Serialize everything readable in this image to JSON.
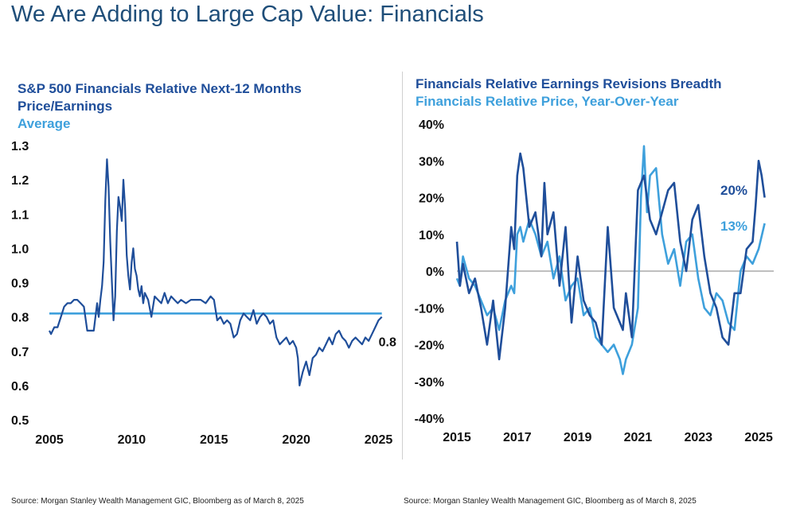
{
  "page": {
    "title": "We Are Adding to Large Cap Value: Financials",
    "sources": [
      "Source: Morgan Stanley Wealth Management GIC, Bloomberg as of March 8, 2025",
      "Source: Morgan Stanley Wealth Management GIC, Bloomberg as of March 8, 2025"
    ]
  },
  "colors": {
    "dark": "#1f4e9a",
    "light": "#3ea0dc",
    "text": "#111111",
    "zero": "#999999"
  },
  "chart_data": [
    {
      "type": "line",
      "title_lines": [
        "S&P 500 Financials Relative Next-12 Months",
        "Price/Earnings"
      ],
      "legend": [
        "Average"
      ],
      "xlim": [
        2005,
        2025.7
      ],
      "ylim": [
        0.5,
        1.3
      ],
      "x_ticks": [
        "2005",
        "2010",
        "2015",
        "2020",
        "2025"
      ],
      "x_tick_values": [
        2005,
        2010,
        2015,
        2020,
        2025
      ],
      "y_ticks": [
        "1.3",
        "1.2",
        "1.1",
        "1.0",
        "0.9",
        "0.8",
        "0.7",
        "0.6",
        "0.5"
      ],
      "y_tick_values": [
        1.3,
        1.2,
        1.1,
        1.0,
        0.9,
        0.8,
        0.7,
        0.6,
        0.5
      ],
      "end_label": "0.8",
      "series": [
        {
          "role": "main",
          "x": [
            2005.0,
            2005.1,
            2005.3,
            2005.5,
            2005.7,
            2005.9,
            2006.1,
            2006.3,
            2006.5,
            2006.7,
            2006.9,
            2007.1,
            2007.3,
            2007.5,
            2007.7,
            2007.9,
            2008.0,
            2008.1,
            2008.2,
            2008.3,
            2008.4,
            2008.5,
            2008.6,
            2008.7,
            2008.8,
            2008.9,
            2009.0,
            2009.1,
            2009.2,
            2009.3,
            2009.4,
            2009.5,
            2009.6,
            2009.7,
            2009.8,
            2009.9,
            2010.0,
            2010.1,
            2010.2,
            2010.3,
            2010.4,
            2010.5,
            2010.6,
            2010.7,
            2010.8,
            2011.0,
            2011.2,
            2011.4,
            2011.6,
            2011.8,
            2012.0,
            2012.2,
            2012.4,
            2012.6,
            2012.8,
            2013.0,
            2013.3,
            2013.6,
            2013.9,
            2014.2,
            2014.5,
            2014.8,
            2015.0,
            2015.2,
            2015.4,
            2015.6,
            2015.8,
            2016.0,
            2016.2,
            2016.4,
            2016.6,
            2016.8,
            2017.0,
            2017.2,
            2017.4,
            2017.6,
            2017.8,
            2018.0,
            2018.2,
            2018.4,
            2018.6,
            2018.8,
            2019.0,
            2019.2,
            2019.4,
            2019.6,
            2019.8,
            2020.0,
            2020.1,
            2020.2,
            2020.4,
            2020.6,
            2020.8,
            2021.0,
            2021.2,
            2021.4,
            2021.6,
            2021.8,
            2022.0,
            2022.2,
            2022.4,
            2022.6,
            2022.8,
            2023.0,
            2023.2,
            2023.4,
            2023.6,
            2023.8,
            2024.0,
            2024.2,
            2024.4,
            2024.6,
            2024.8,
            2025.0,
            2025.2
          ],
          "y": [
            0.76,
            0.75,
            0.77,
            0.77,
            0.8,
            0.83,
            0.84,
            0.84,
            0.85,
            0.85,
            0.84,
            0.83,
            0.76,
            0.76,
            0.76,
            0.84,
            0.8,
            0.85,
            0.89,
            0.96,
            1.14,
            1.26,
            1.18,
            1.02,
            0.9,
            0.79,
            0.86,
            1.05,
            1.15,
            1.12,
            1.08,
            1.2,
            1.12,
            0.98,
            0.92,
            0.88,
            0.96,
            1.0,
            0.94,
            0.92,
            0.88,
            0.86,
            0.89,
            0.84,
            0.87,
            0.85,
            0.8,
            0.86,
            0.85,
            0.84,
            0.87,
            0.84,
            0.86,
            0.85,
            0.84,
            0.85,
            0.84,
            0.85,
            0.85,
            0.85,
            0.84,
            0.86,
            0.85,
            0.79,
            0.8,
            0.78,
            0.79,
            0.78,
            0.74,
            0.75,
            0.79,
            0.81,
            0.8,
            0.79,
            0.82,
            0.78,
            0.8,
            0.81,
            0.8,
            0.78,
            0.79,
            0.74,
            0.72,
            0.73,
            0.74,
            0.72,
            0.73,
            0.71,
            0.68,
            0.6,
            0.64,
            0.67,
            0.63,
            0.68,
            0.69,
            0.71,
            0.7,
            0.72,
            0.74,
            0.72,
            0.75,
            0.76,
            0.74,
            0.73,
            0.71,
            0.73,
            0.74,
            0.73,
            0.72,
            0.74,
            0.73,
            0.75,
            0.77,
            0.79,
            0.8
          ]
        },
        {
          "role": "average",
          "name": "Average",
          "x": [
            2005.0,
            2025.2
          ],
          "y": [
            0.81,
            0.81
          ]
        }
      ]
    },
    {
      "type": "line",
      "title_lines": [
        "Financials Relative Earnings Revisions Breadth",
        "Financials Relative Price, Year-Over-Year"
      ],
      "xlim": [
        2015,
        2025.5
      ],
      "ylim": [
        -40,
        40
      ],
      "x_ticks": [
        "2015",
        "2017",
        "2019",
        "2021",
        "2023",
        "2025"
      ],
      "x_tick_values": [
        2015,
        2017,
        2019,
        2021,
        2023,
        2025
      ],
      "y_ticks": [
        "40%",
        "30%",
        "20%",
        "10%",
        "0%",
        "-10%",
        "-20%",
        "-30%",
        "-40%"
      ],
      "y_tick_values": [
        40,
        30,
        20,
        10,
        0,
        -10,
        -20,
        -30,
        -40
      ],
      "series": [
        {
          "name": "Financials Relative Earnings Revisions Breadth",
          "end_label": "20%",
          "x": [
            2015.0,
            2015.1,
            2015.2,
            2015.4,
            2015.6,
            2015.8,
            2016.0,
            2016.2,
            2016.4,
            2016.6,
            2016.8,
            2016.9,
            2017.0,
            2017.1,
            2017.2,
            2017.4,
            2017.6,
            2017.8,
            2017.9,
            2018.0,
            2018.2,
            2018.4,
            2018.6,
            2018.8,
            2019.0,
            2019.2,
            2019.4,
            2019.6,
            2019.8,
            2020.0,
            2020.2,
            2020.4,
            2020.5,
            2020.6,
            2020.8,
            2021.0,
            2021.2,
            2021.4,
            2021.6,
            2021.8,
            2022.0,
            2022.2,
            2022.4,
            2022.6,
            2022.8,
            2023.0,
            2023.2,
            2023.4,
            2023.6,
            2023.8,
            2024.0,
            2024.2,
            2024.4,
            2024.6,
            2024.8,
            2024.9,
            2025.0,
            2025.1,
            2025.2
          ],
          "y": [
            8,
            -4,
            2,
            -6,
            -2,
            -10,
            -20,
            -8,
            -24,
            -10,
            12,
            6,
            26,
            32,
            28,
            12,
            16,
            4,
            24,
            10,
            16,
            -4,
            12,
            -14,
            4,
            -8,
            -12,
            -14,
            -20,
            12,
            -10,
            -14,
            -16,
            -6,
            -18,
            22,
            26,
            14,
            10,
            16,
            22,
            24,
            8,
            0,
            14,
            18,
            4,
            -6,
            -10,
            -18,
            -20,
            -6,
            -6,
            6,
            8,
            18,
            30,
            26,
            20
          ]
        },
        {
          "name": "Financials Relative Price, Year-Over-Year",
          "end_label": "13%",
          "x": [
            2015.0,
            2015.1,
            2015.2,
            2015.4,
            2015.6,
            2015.8,
            2016.0,
            2016.2,
            2016.4,
            2016.6,
            2016.8,
            2016.9,
            2017.0,
            2017.1,
            2017.2,
            2017.4,
            2017.6,
            2017.8,
            2018.0,
            2018.2,
            2018.4,
            2018.6,
            2018.8,
            2019.0,
            2019.2,
            2019.4,
            2019.6,
            2019.8,
            2020.0,
            2020.2,
            2020.4,
            2020.5,
            2020.6,
            2020.8,
            2021.0,
            2021.1,
            2021.2,
            2021.3,
            2021.4,
            2021.6,
            2021.8,
            2022.0,
            2022.2,
            2022.4,
            2022.6,
            2022.8,
            2023.0,
            2023.2,
            2023.4,
            2023.6,
            2023.8,
            2024.0,
            2024.2,
            2024.4,
            2024.6,
            2024.8,
            2025.0,
            2025.2
          ],
          "y": [
            -2,
            -4,
            4,
            -2,
            -4,
            -8,
            -12,
            -10,
            -16,
            -8,
            -4,
            -6,
            10,
            12,
            8,
            14,
            10,
            4,
            8,
            -2,
            4,
            -8,
            -4,
            -2,
            -12,
            -10,
            -18,
            -20,
            -22,
            -20,
            -24,
            -28,
            -24,
            -20,
            -10,
            20,
            34,
            16,
            26,
            28,
            10,
            2,
            6,
            -4,
            8,
            10,
            -2,
            -10,
            -12,
            -6,
            -8,
            -14,
            -16,
            0,
            4,
            2,
            6,
            13
          ]
        }
      ],
      "zero_line": 0
    }
  ]
}
